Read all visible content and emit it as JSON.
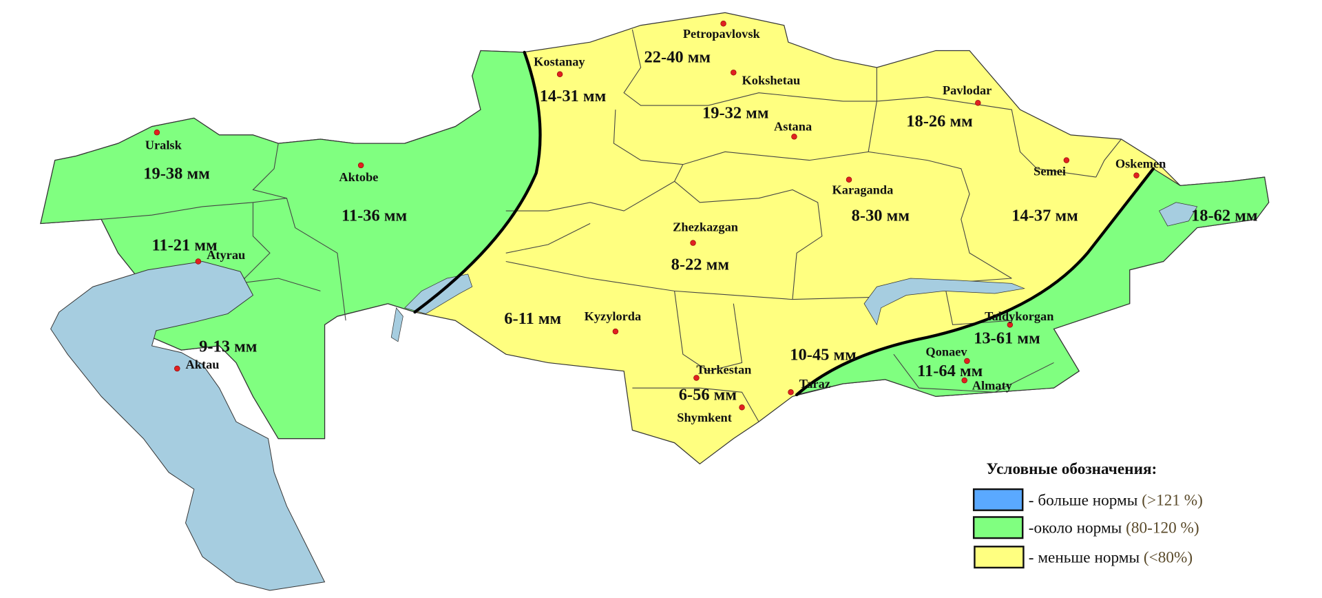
{
  "map": {
    "colors": {
      "above_norm": "#5aa9ff",
      "near_norm": "#80ff80",
      "below_norm": "#ffff80",
      "water": "#a6cde0",
      "city_dot": "#e02020"
    },
    "cities": [
      {
        "name": "Petropavlovsk"
      },
      {
        "name": "Kostanay"
      },
      {
        "name": "Kokshetau"
      },
      {
        "name": "Astana"
      },
      {
        "name": "Pavlodar"
      },
      {
        "name": "Uralsk"
      },
      {
        "name": "Aktobe"
      },
      {
        "name": "Atyrau"
      },
      {
        "name": "Aktau"
      },
      {
        "name": "Kyzylorda"
      },
      {
        "name": "Zhezkazgan"
      },
      {
        "name": "Karaganda"
      },
      {
        "name": "Semei"
      },
      {
        "name": "Oskemen"
      },
      {
        "name": "Taldykorgan"
      },
      {
        "name": "Qonaev"
      },
      {
        "name": "Almaty"
      },
      {
        "name": "Taraz"
      },
      {
        "name": "Turkestan"
      },
      {
        "name": "Shymkent"
      }
    ],
    "values": [
      "22-40 мм",
      "14-31 мм",
      "19-32 мм",
      "18-26 мм",
      "19-38 мм",
      "11-36 мм",
      "11-21 мм",
      "9-13 мм",
      "6-11 мм",
      "8-22 мм",
      "8-30 мм",
      "14-37 мм",
      "18-62 мм",
      "13-61 мм",
      "10-45 мм",
      "11-64 мм",
      "6-56 мм"
    ]
  },
  "legend": {
    "title": "Условные обозначения:",
    "items": [
      {
        "label": "- больше нормы ",
        "range": "(>121 %)",
        "color": "#5aa9ff"
      },
      {
        "label": "-около нормы ",
        "range": "(80-120 %)",
        "color": "#80ff80"
      },
      {
        "label": "- меньше нормы ",
        "range": "(<80%)",
        "color": "#ffff80"
      }
    ]
  }
}
